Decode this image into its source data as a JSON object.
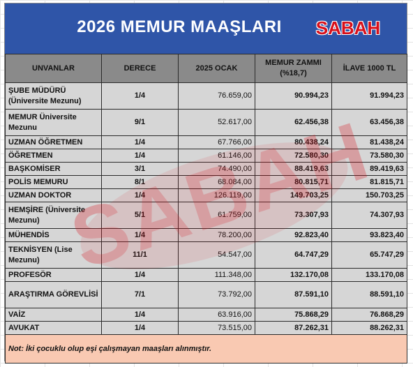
{
  "title": "2026 MEMUR MAAŞLARI",
  "logo_text": "SABAH",
  "watermark_text": "SABAH",
  "headers": [
    "UNVANLAR",
    "DERECE",
    "2025 OCAK",
    "MEMUR ZAMMI (%18,7)",
    "İLAVE 1000 TL"
  ],
  "rows": [
    {
      "title": "ŞUBE MÜDÜRÜ (Üniversite Mezunu)",
      "degree": "1/4",
      "jan2025": "76.659,00",
      "raise": "90.994,23",
      "plus1000": "91.994,23"
    },
    {
      "title": "MEMUR Üniversite Mezunu",
      "degree": "9/1",
      "jan2025": "52.617,00",
      "raise": "62.456,38",
      "plus1000": "63.456,38"
    },
    {
      "title": "UZMAN ÖĞRETMEN",
      "degree": "1/4",
      "jan2025": "67.766,00",
      "raise": "80.438,24",
      "plus1000": "81.438,24"
    },
    {
      "title": "ÖĞRETMEN",
      "degree": "1/4",
      "jan2025": "61.146,00",
      "raise": "72.580,30",
      "plus1000": "73.580,30"
    },
    {
      "title": "BAŞKOMİSER",
      "degree": "3/1",
      "jan2025": "74.490,00",
      "raise": "88.419,63",
      "plus1000": "89.419,63"
    },
    {
      "title": "POLİS MEMURU",
      "degree": "8/1",
      "jan2025": "68.084,00",
      "raise": "80.815,71",
      "plus1000": "81.815,71"
    },
    {
      "title": "UZMAN DOKTOR",
      "degree": "1/4",
      "jan2025": "126.119,00",
      "raise": "149.703,25",
      "plus1000": "150.703,25"
    },
    {
      "title": "HEMŞİRE (Üniversite Mezunu)",
      "degree": "5/1",
      "jan2025": "61.759,00",
      "raise": "73.307,93",
      "plus1000": "74.307,93"
    },
    {
      "title": "MÜHENDİS",
      "degree": "1/4",
      "jan2025": "78.200,00",
      "raise": "92.823,40",
      "plus1000": "93.823,40"
    },
    {
      "title": "TEKNİSYEN (Lise Mezunu)",
      "degree": "11/1",
      "jan2025": "54.547,00",
      "raise": "64.747,29",
      "plus1000": "65.747,29"
    },
    {
      "title": "PROFESÖR",
      "degree": "1/4",
      "jan2025": "111.348,00",
      "raise": "132.170,08",
      "plus1000": "133.170,08"
    },
    {
      "title": "ARAŞTIRMA GÖREVLİSİ",
      "degree": "7/1",
      "jan2025": "73.792,00",
      "raise": "87.591,10",
      "plus1000": "88.591,10"
    },
    {
      "title": "VAİZ",
      "degree": "1/4",
      "jan2025": "63.916,00",
      "raise": "75.868,29",
      "plus1000": "76.868,29"
    },
    {
      "title": "AVUKAT",
      "degree": "1/4",
      "jan2025": "73.515,00",
      "raise": "87.262,31",
      "plus1000": "88.262,31"
    }
  ],
  "note": "Not: İki çocuklu olup eşi çalışmayan maaşları alınmıştır.",
  "colors": {
    "title_bg": "#2f55a8",
    "header_bg": "#8a8a8a",
    "row_bg": "#d6d6d6",
    "title_col_text": "#2f55a8",
    "note_bg": "#f9c9b2",
    "brand_red": "#d8101b"
  }
}
